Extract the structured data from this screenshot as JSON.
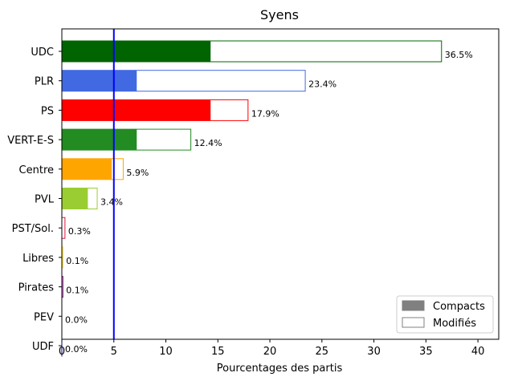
{
  "chart_data": {
    "type": "bar",
    "orientation": "horizontal",
    "title": "Syens",
    "xlabel": "Pourcentages des partis",
    "ylabel": "",
    "xlim": [
      0,
      42
    ],
    "xticks": [
      0,
      5,
      10,
      15,
      20,
      25,
      30,
      35,
      40
    ],
    "grid": false,
    "reference_line": {
      "x": 5,
      "color": "#0000ff"
    },
    "legend": {
      "position": "bottom-right",
      "entries": [
        {
          "label": "Compacts",
          "style": "filled",
          "color": "#808080"
        },
        {
          "label": "Modifiés",
          "style": "outline",
          "color": "#808080"
        }
      ]
    },
    "categories": [
      "UDC",
      "PLR",
      "PS",
      "VERT-E-S",
      "Centre",
      "PVL",
      "PST/Sol.",
      "Libres",
      "Pirates",
      "PEV",
      "UDF"
    ],
    "colors": [
      "#006400",
      "#4169e1",
      "#ff0000",
      "#228b22",
      "#ffa500",
      "#9acd32",
      "#dc143c",
      "#ffd700",
      "#800080",
      "#ffd700",
      "#000080"
    ],
    "series": [
      {
        "name": "Compacts",
        "values": [
          14.3,
          7.2,
          14.3,
          7.2,
          4.8,
          2.5,
          0.0,
          0.0,
          0.0,
          0.0,
          0.0
        ]
      },
      {
        "name": "Modifiés",
        "values": [
          36.5,
          23.4,
          17.9,
          12.4,
          5.9,
          3.4,
          0.3,
          0.1,
          0.1,
          0.0,
          0.0
        ]
      }
    ],
    "labels": [
      "36.5%",
      "23.4%",
      "17.9%",
      "12.4%",
      "5.9%",
      "3.4%",
      "0.3%",
      "0.1%",
      "0.1%",
      "0.0%",
      "0.0%"
    ]
  }
}
